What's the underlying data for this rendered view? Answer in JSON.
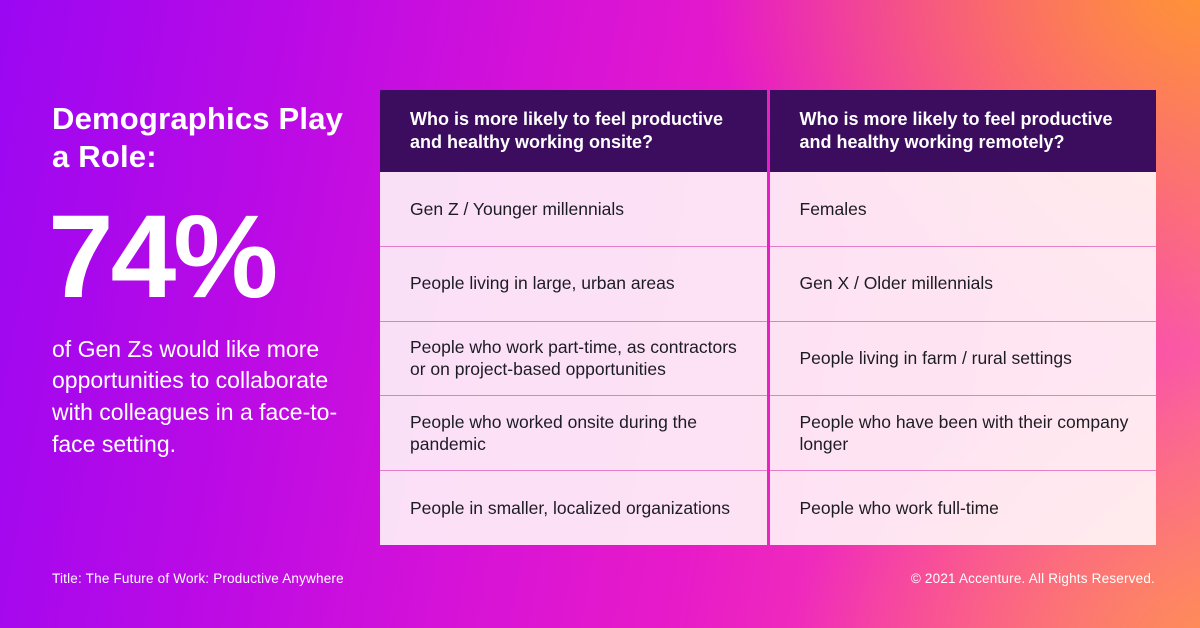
{
  "left_panel": {
    "heading": "Demographics Play a Role:",
    "stat": "74%",
    "description": "of Gen Zs would like more opportunities to collaborate with colleagues in a face-to-face setting."
  },
  "footer": {
    "left": "Title: The Future of Work: Productive Anywhere",
    "right": "© 2021 Accenture. All Rights Reserved."
  },
  "table": {
    "headers": [
      "Who is more likely to feel productive and healthy working onsite?",
      "Who is more likely to feel productive and healthy working remotely?"
    ],
    "rows": [
      {
        "onsite": "Gen Z / Younger millennials",
        "remote": "Females"
      },
      {
        "onsite": "People living in large, urban areas",
        "remote": "Gen X / Older millennials"
      },
      {
        "onsite": "People who work part-time, as contractors or on project-based opportunities",
        "remote": "People living in farm / rural settings"
      },
      {
        "onsite": "People who worked onsite during the pandemic",
        "remote": "People who have been with their company longer"
      },
      {
        "onsite": "People in smaller, localized organizations",
        "remote": "People who work full-time"
      }
    ]
  },
  "colors": {
    "header_background": "#3c0c5f",
    "gradient_purple": "#9b07f2",
    "gradient_magenta": "#e81bc8",
    "gradient_orange": "#ff992b",
    "text_on_dark": "#ffffff",
    "cell_text": "#1c1c24"
  },
  "chart_data": {
    "type": "table",
    "title": "Demographics Play a Role",
    "stat": {
      "value": 74,
      "unit": "%",
      "description": "of Gen Zs would like more opportunities to collaborate with colleagues in a face-to-face setting."
    },
    "columns": [
      "Who is more likely to feel productive and healthy working onsite?",
      "Who is more likely to feel productive and healthy working remotely?"
    ],
    "rows": [
      [
        "Gen Z / Younger millennials",
        "Females"
      ],
      [
        "People living in large, urban areas",
        "Gen X / Older millennials"
      ],
      [
        "People who work part-time, as contractors or on project-based opportunities",
        "People living in farm / rural settings"
      ],
      [
        "People who worked onsite during the pandemic",
        "People who have been with their company longer"
      ],
      [
        "People in smaller, localized organizations",
        "People who work full-time"
      ]
    ],
    "source": "The Future of Work: Productive Anywhere",
    "copyright": "© 2021 Accenture. All Rights Reserved."
  }
}
